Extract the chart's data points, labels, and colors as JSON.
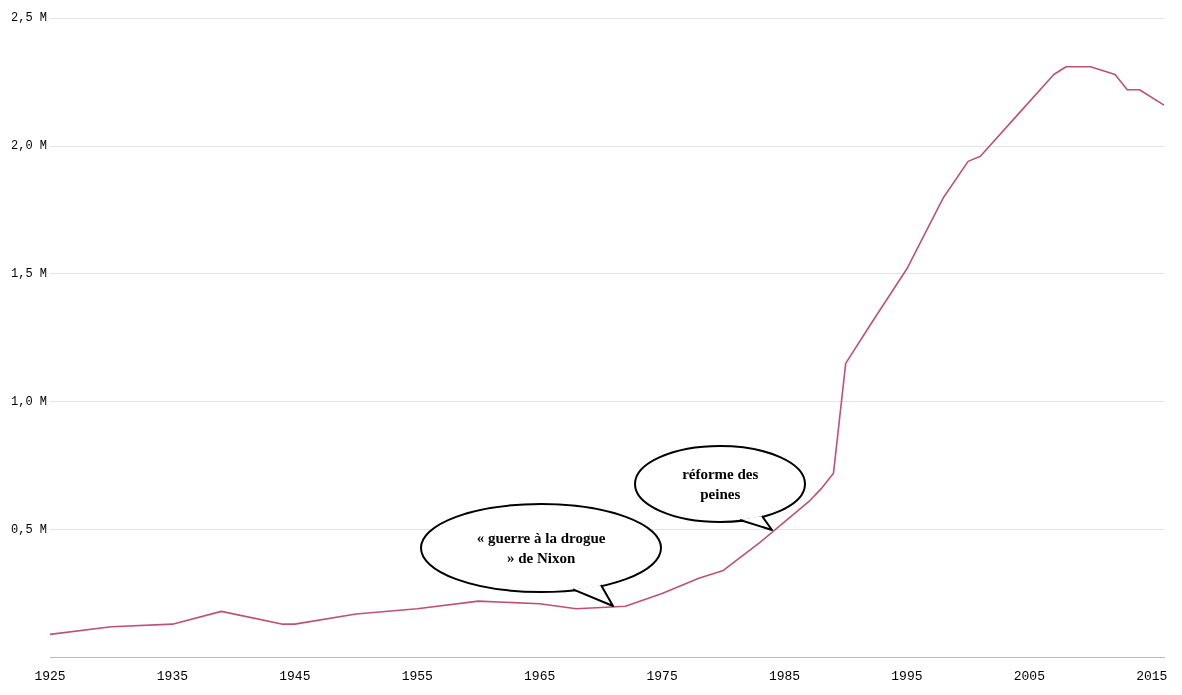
{
  "chart_data": {
    "type": "line",
    "x": [
      1925,
      1930,
      1935,
      1939,
      1944,
      1945,
      1950,
      1955,
      1960,
      1965,
      1968,
      1972,
      1975,
      1978,
      1980,
      1983,
      1985,
      1987,
      1988,
      1989,
      1990,
      1992,
      1995,
      1998,
      2000,
      2001,
      2004,
      2007,
      2008,
      2010,
      2012,
      2013,
      2014,
      2016
    ],
    "series": [
      {
        "color": "#c0507a",
        "values": [
          0.09,
          0.12,
          0.13,
          0.18,
          0.13,
          0.13,
          0.17,
          0.19,
          0.22,
          0.21,
          0.19,
          0.2,
          0.25,
          0.31,
          0.34,
          0.45,
          0.53,
          0.61,
          0.66,
          0.72,
          1.15,
          1.3,
          1.52,
          1.8,
          1.94,
          1.96,
          2.12,
          2.28,
          2.31,
          2.31,
          2.28,
          2.22,
          2.22,
          2.16
        ]
      }
    ],
    "xlim": [
      1925,
      2016
    ],
    "xticks": [
      1925,
      1935,
      1945,
      1955,
      1965,
      1975,
      1985,
      1995,
      2005,
      2015
    ],
    "ylim": [
      0,
      2.5
    ],
    "yticks": [
      {
        "value": 0.5,
        "label": "0,5 M"
      },
      {
        "value": 1,
        "label": "1,0 M"
      },
      {
        "value": 1.5,
        "label": "1,5 M"
      },
      {
        "value": 2,
        "label": "2,0 M"
      },
      {
        "value": 2.5,
        "label": "2,5 M"
      }
    ],
    "grid": "y",
    "legend": false,
    "marker": "none",
    "line_style": "solid",
    "annotations": [
      {
        "text": "« guerre à la drogue » de Nixon",
        "x": 1971,
        "y": 0.2
      },
      {
        "text": "réforme des peines",
        "x": 1984,
        "y": 0.5
      }
    ]
  }
}
